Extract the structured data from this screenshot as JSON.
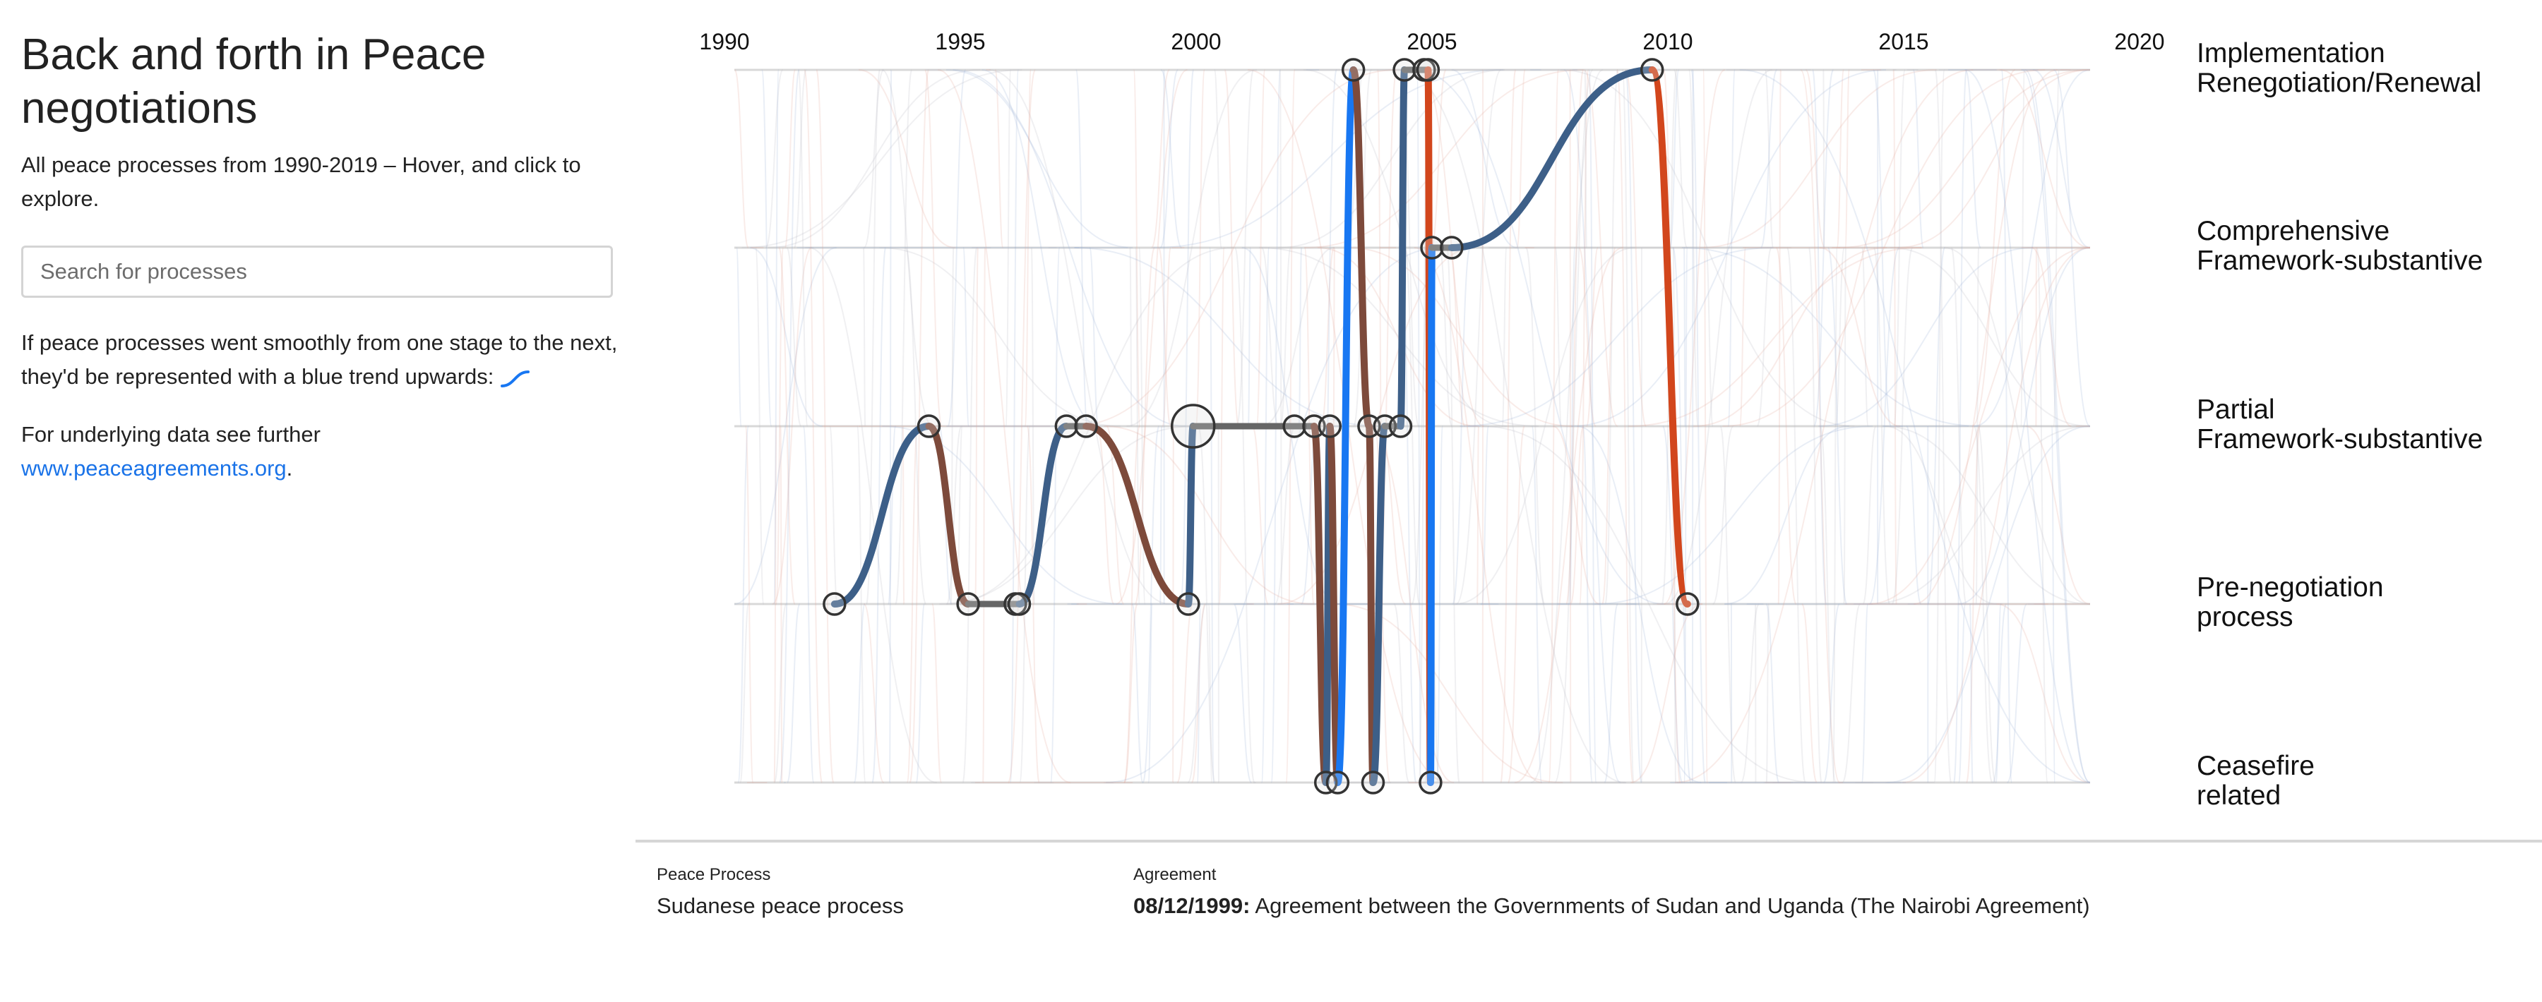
{
  "sidebar": {
    "title": "Back and forth in Peace negotiations",
    "subtitle": "All peace processes from 1990-2019 – Hover, and click to explore.",
    "search_placeholder": "Search for processes",
    "explanation": "If peace processes went smoothly from one stage to the next, they'd be represented with a blue trend upwards:",
    "data_note": "For underlying data see further",
    "data_link": "www.peaceagreements.org",
    "data_link_suffix": "."
  },
  "details": {
    "process_label": "Peace Process",
    "process_value": "Sudanese peace process",
    "agreement_label": "Agreement",
    "agreement_date": "08/12/1999:",
    "agreement_title": "Agreement between the Governments of Sudan and Uganda (The Nairobi Agreement)"
  },
  "colors": {
    "up_small": "#3d5f88",
    "up_large": "#1877f2",
    "down_small": "#7d4a3b",
    "down_large": "#d2461c",
    "same_stage": "#666666",
    "link": "#1a73e8"
  },
  "chart_data": {
    "type": "line",
    "x_axis": {
      "type": "date",
      "range": [
        1990,
        2020
      ],
      "ticks": [
        "1990",
        "1995",
        "2000",
        "2005",
        "2010",
        "2015",
        "2020"
      ]
    },
    "y_axis": {
      "type": "categorical",
      "position": "right",
      "categories": [
        "Ceasefire related",
        "Pre-negotiation process",
        "Partial Framework-substantive",
        "Comprehensive Framework-substantive",
        "Implementation Renegotiation/Renewal"
      ],
      "labels": [
        [
          "Ceasefire",
          "related"
        ],
        [
          "Pre-negotiation",
          "process"
        ],
        [
          "Partial",
          "Framework-substantive"
        ],
        [
          "Comprehensive",
          "Framework-substantive"
        ],
        [
          "Implementation",
          "Renegotiation/Renewal"
        ]
      ]
    },
    "selected_process": "Sudanese peace process",
    "selected_agreement_date": "1999-12-08",
    "series": [
      {
        "points": [
          {
            "date": "1992-05",
            "stage": 1
          },
          {
            "date": "1994-05",
            "stage": 2
          },
          {
            "date": "1995-03",
            "stage": 1
          },
          {
            "date": "1996-03",
            "stage": 1
          },
          {
            "date": "1996-04",
            "stage": 1
          },
          {
            "date": "1997-04",
            "stage": 2
          },
          {
            "date": "1997-09",
            "stage": 2
          },
          {
            "date": "1999-11",
            "stage": 1
          },
          {
            "date": "1999-12-08",
            "stage": 2,
            "selected": true
          },
          {
            "date": "2002-02",
            "stage": 2
          },
          {
            "date": "2002-07",
            "stage": 2
          },
          {
            "date": "2002-10",
            "stage": 0
          },
          {
            "date": "2002-11",
            "stage": 2
          },
          {
            "date": "2003-01",
            "stage": 0
          },
          {
            "date": "2003-05",
            "stage": 4
          },
          {
            "date": "2003-09",
            "stage": 2
          },
          {
            "date": "2003-10",
            "stage": 0
          },
          {
            "date": "2004-01",
            "stage": 2
          },
          {
            "date": "2004-05",
            "stage": 2
          },
          {
            "date": "2004-06",
            "stage": 4
          },
          {
            "date": "2004-11",
            "stage": 4
          },
          {
            "date": "2004-12",
            "stage": 4
          },
          {
            "date": "2004-12-20",
            "stage": 0
          },
          {
            "date": "2005-01",
            "stage": 3
          },
          {
            "date": "2005-06",
            "stage": 3
          },
          {
            "date": "2009-09",
            "stage": 4
          },
          {
            "date": "2010-06",
            "stage": 1
          }
        ]
      }
    ],
    "background_series_count_shown": "all peace processes 1990-2019 (faint)",
    "grid": true
  }
}
